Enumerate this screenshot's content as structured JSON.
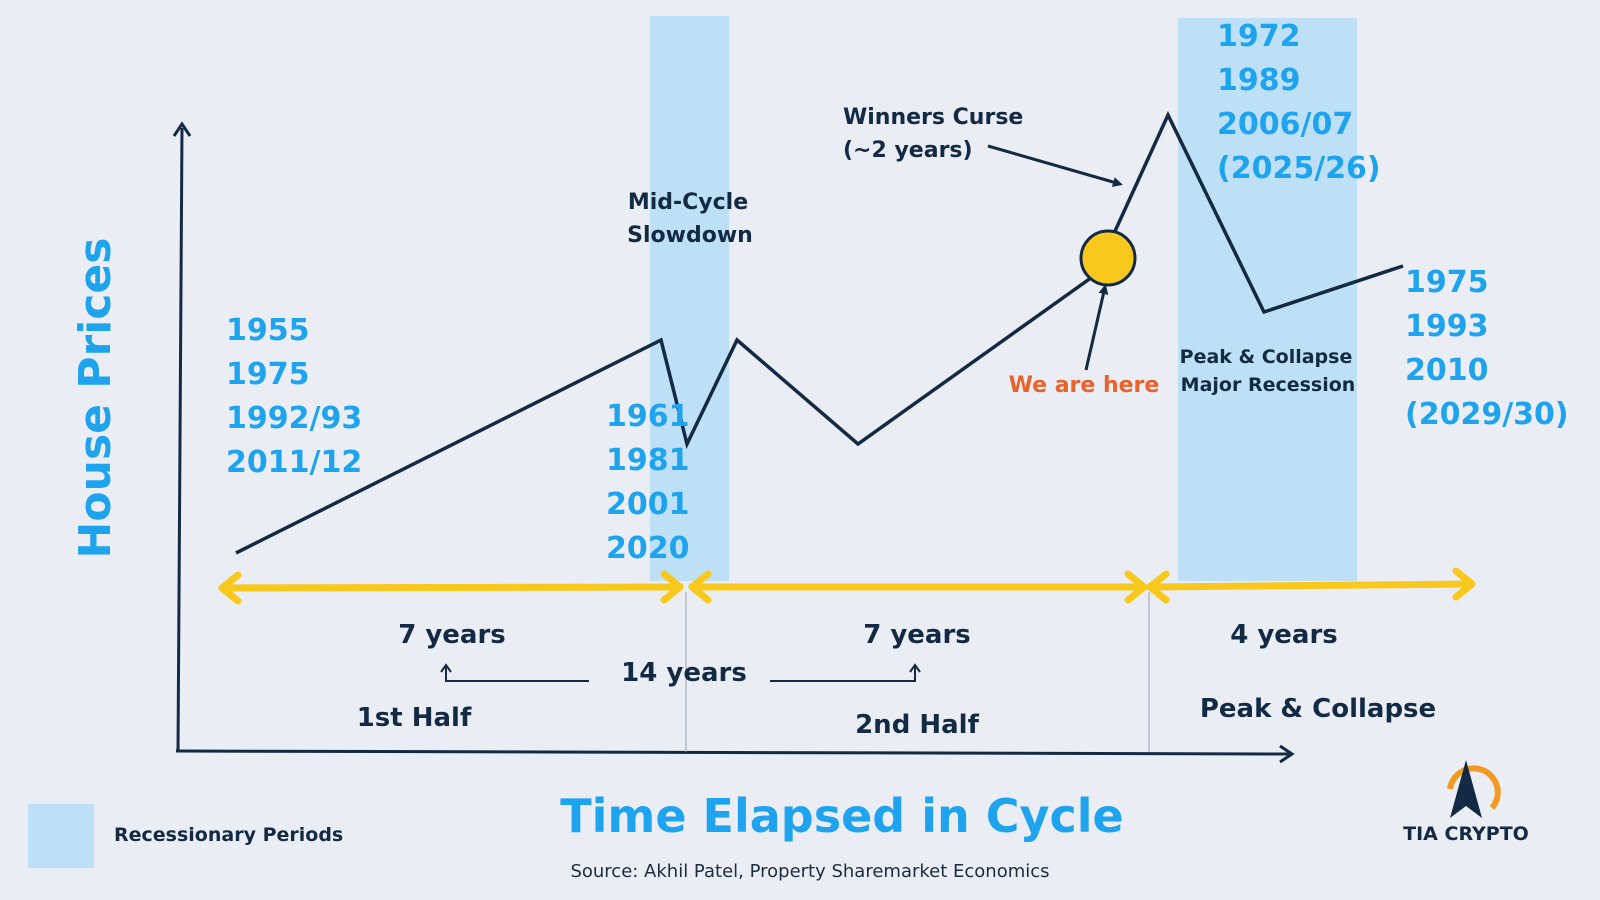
{
  "y_axis_label": "House Prices",
  "x_axis_label": "Time Elapsed in Cycle",
  "source": "Source: Akhil Patel, Property Sharemarket Economics",
  "legend": {
    "label": "Recessionary Periods",
    "color": "#bde0f6"
  },
  "brand": "TIA CRYPTO",
  "colors": {
    "accent_blue": "#1ea4ee",
    "navy": "#122a44",
    "orange": "#e8622c",
    "yellow": "#f8c81c",
    "band": "#bde0f6",
    "background": "#eaedf4"
  },
  "annotations": {
    "mid_cycle": [
      "Mid-Cycle",
      "Slowdown"
    ],
    "winners_curse": [
      "Winners Curse",
      "(~2 years)"
    ],
    "we_are_here": "We are here",
    "peak_collapse_band": [
      "Peak & Collapse",
      "Major Recession"
    ]
  },
  "year_groups": {
    "start": [
      "1955",
      "1975",
      "1992/93",
      "2011/12"
    ],
    "mid": [
      "1961",
      "1981",
      "2001",
      "2020"
    ],
    "peak": [
      "1972",
      "1989",
      "2006/07",
      "(2025/26)"
    ],
    "end": [
      "1975",
      "1993",
      "2010",
      "(2029/30)"
    ]
  },
  "durations": {
    "first": "7 years",
    "second": "7 years",
    "third": "4 years",
    "total": "14 years"
  },
  "phases": {
    "first_half": "1st Half",
    "second_half": "2nd Half",
    "peak_collapse": "Peak & Collapse"
  },
  "icons": {
    "marker": "current-position-circle-icon",
    "logo": "tia-crypto-logo-icon"
  }
}
